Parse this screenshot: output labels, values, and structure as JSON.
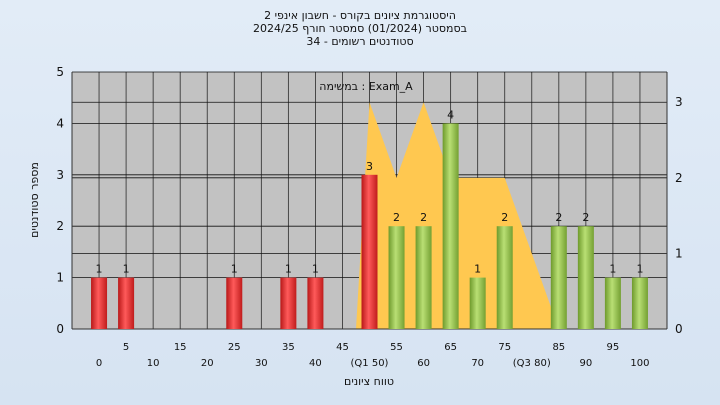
{
  "chart_data": {
    "type": "bar",
    "title_lines": [
      "היסטוגרמת ציונים בקורס - חשבון אינפי 2",
      "בסמסטר  (01/2024)  סמסטר חורף 2024/25",
      "סטודנטים רשומים - 34"
    ],
    "xlabel": "טווח ציונים",
    "ylabel": "מספר סטודנטים",
    "annotation": "במשימה : Exam_A",
    "ylim": [
      0,
      5
    ],
    "y_ticks": [
      "0",
      "1",
      "2",
      "3",
      "4",
      "5"
    ],
    "y2lim": [
      0,
      3.4
    ],
    "y2_ticks": [
      "0",
      "1",
      "2",
      "3"
    ],
    "x_ticks_lower": [
      "0",
      "10",
      "20",
      "30",
      "40",
      "(Q1 50)",
      "60",
      "70",
      "(Q3 80)",
      "90",
      "100"
    ],
    "x_ticks_upper": [
      "5",
      "15",
      "25",
      "35",
      "45",
      "55",
      "65",
      "75",
      "85",
      "95"
    ],
    "bins": [
      0,
      5,
      10,
      15,
      20,
      25,
      30,
      35,
      40,
      45,
      50,
      55,
      60,
      65,
      70,
      75,
      80,
      85,
      90,
      95,
      100
    ],
    "values": [
      1,
      1,
      0,
      0,
      0,
      1,
      0,
      1,
      1,
      0,
      3,
      2,
      2,
      4,
      1,
      2,
      0,
      2,
      2,
      1,
      1
    ],
    "value_labels": [
      "1",
      "1",
      "",
      "",
      "",
      "1",
      "",
      "1",
      "1",
      "",
      "3",
      "2",
      "2",
      "4",
      "1",
      "2",
      "",
      "2",
      "2",
      "1",
      "1"
    ],
    "bar_colors": [
      "red",
      "red",
      "red",
      "red",
      "red",
      "red",
      "red",
      "red",
      "red",
      "red",
      "red",
      "green",
      "green",
      "green",
      "green",
      "green",
      "green",
      "green",
      "green",
      "green",
      "green"
    ],
    "area_series": {
      "x": [
        47.5,
        50,
        55,
        60,
        65,
        70,
        75,
        80,
        85
      ],
      "y": [
        0,
        3,
        2,
        3,
        2,
        2,
        2,
        1,
        0
      ]
    },
    "colors": {
      "red": "#e03030",
      "green": "#8ec04a",
      "area": "#ffc850",
      "plot_bg": "#c2c2c2"
    }
  }
}
